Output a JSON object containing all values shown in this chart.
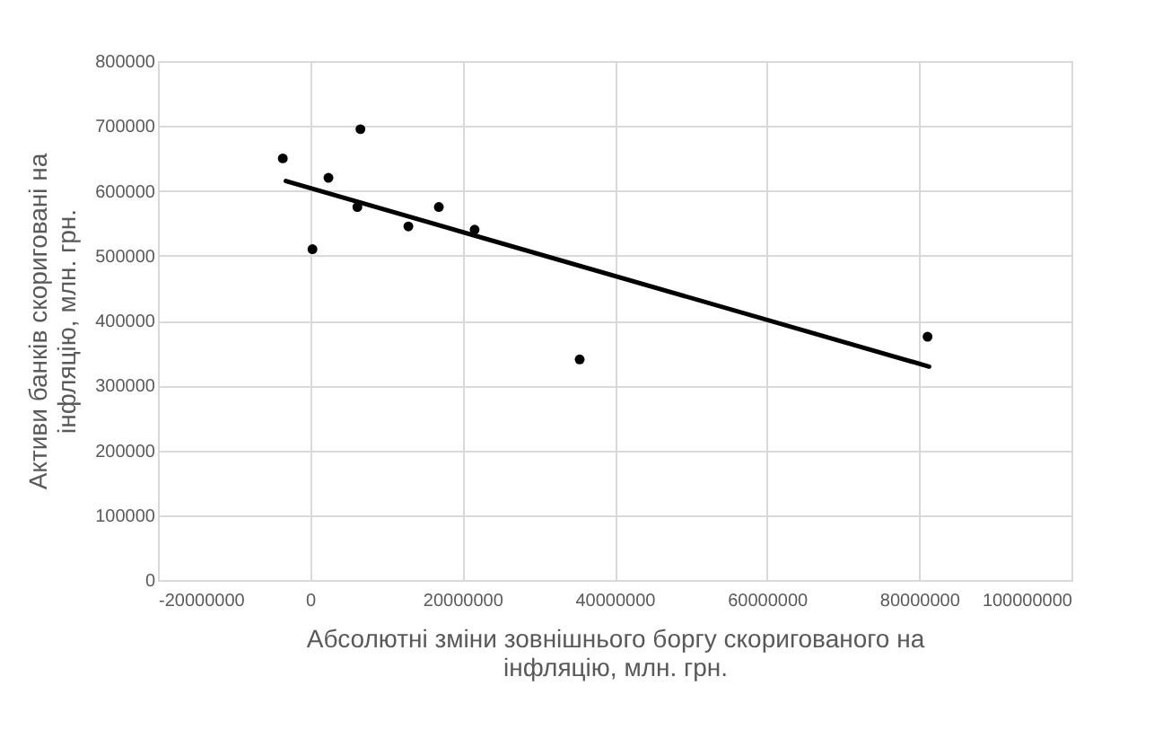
{
  "chart_data": {
    "type": "scatter",
    "xlabel": "Абсолютні зміни зовнішнього боргу скоригованого на інфляцію, млн. грн.",
    "ylabel": "Активи банків скориговані на інфляцію, млн. грн.",
    "xlim": [
      -20000000,
      100000000
    ],
    "xticks": [
      -20000000,
      0,
      20000000,
      40000000,
      60000000,
      80000000,
      100000000
    ],
    "ylim": [
      0,
      800000
    ],
    "yticks": [
      0,
      100000,
      200000,
      300000,
      400000,
      500000,
      600000,
      700000,
      800000
    ],
    "grid": true,
    "marker": "circle",
    "series": [
      {
        "color": "#000000",
        "x": [
          -3600000,
          300000,
          2400000,
          6600000,
          6200000,
          12900000,
          16900000,
          21600000,
          35400000,
          81100000
        ],
        "values": [
          650000,
          510000,
          620000,
          695000,
          575000,
          545000,
          575000,
          540000,
          340000,
          375000
        ]
      },
      {
        "type": "line",
        "marker": "none",
        "color": "#000000",
        "x": [
          -3200000,
          81300000
        ],
        "values": [
          615000,
          329000
        ]
      }
    ]
  }
}
